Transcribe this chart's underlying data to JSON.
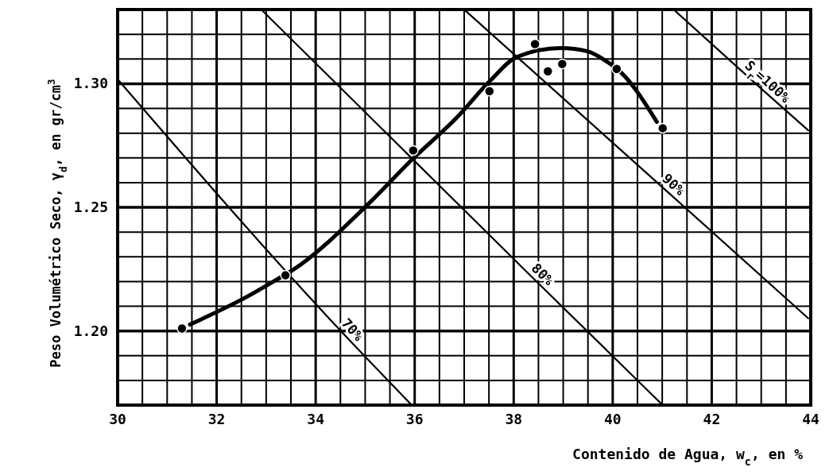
{
  "chart_data": {
    "type": "scatter",
    "xlabel": "Contenido de Agua, w$_{c}$, en %",
    "ylabel": "Peso Volumétrico Seco, γ$_{d}$, en gr/cm$^{3}$",
    "xlim": [
      30,
      44
    ],
    "ylim": [
      1.17,
      1.33
    ],
    "xticks": [
      30,
      32,
      34,
      36,
      38,
      40,
      42,
      44
    ],
    "yticks": [
      {
        "value": 1.2,
        "label": "1.20"
      },
      {
        "value": 1.25,
        "label": "1.25"
      },
      {
        "value": 1.3,
        "label": "1.30"
      }
    ],
    "grid": true,
    "marker": "circle",
    "series": [
      {
        "color": "#000000",
        "x": [
          31.3,
          33.39,
          35.97,
          37.51,
          38.43,
          38.69,
          38.98,
          40.08,
          41.01
        ],
        "values": [
          1.201,
          1.2225,
          1.273,
          1.297,
          1.316,
          1.305,
          1.308,
          1.306,
          1.282
        ]
      },
      {
        "type": "line",
        "marker": "none",
        "color": "#000000",
        "x": [
          31.46,
          32.61,
          33.25,
          33.52,
          35.05,
          35.94,
          36.85,
          37.53,
          38.07,
          38.95,
          39.49,
          39.9,
          40.17,
          40.89
        ],
        "values": [
          1.2026,
          1.2138,
          1.2212,
          1.2244,
          1.2511,
          1.2692,
          1.2863,
          1.3013,
          1.3109,
          1.3144,
          1.3131,
          1.3087,
          1.3045,
          1.2846
        ]
      },
      {
        "type": "line",
        "marker": "none",
        "name": "70%",
        "color": "#000000",
        "x": [
          30,
          34.6,
          35.94
        ],
        "values": [
          1.3018,
          1.198,
          1.17
        ]
      },
      {
        "type": "line",
        "marker": "none",
        "name": "80%",
        "color": "#000000",
        "x": [
          32.9,
          38.45,
          41.01
        ],
        "values": [
          1.33,
          1.2202,
          1.17
        ]
      },
      {
        "type": "line",
        "marker": "none",
        "name": "90%",
        "color": "#000000",
        "x": [
          37.0,
          41.1,
          43.95
        ],
        "values": [
          1.33,
          1.2564,
          1.2051
        ]
      },
      {
        "type": "line",
        "marker": "none",
        "name": "S$_{r}$=100%",
        "color": "#000000",
        "x": [
          41.23,
          43.0,
          43.95
        ],
        "values": [
          1.33,
          1.298,
          1.2811
        ]
      }
    ]
  }
}
